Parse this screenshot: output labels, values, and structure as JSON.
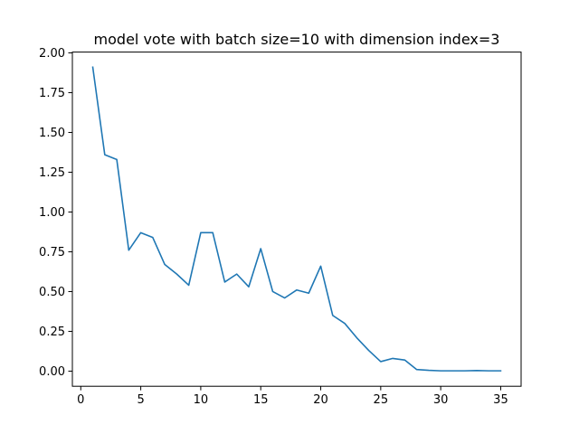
{
  "chart_data": {
    "type": "line",
    "title": "model vote with batch size=10 with dimension index=3",
    "xlabel": "",
    "ylabel": "",
    "xlim": [
      -0.7,
      36.7
    ],
    "ylim": [
      -0.095,
      2.005
    ],
    "x_ticks": [
      0,
      5,
      10,
      15,
      20,
      25,
      30,
      35
    ],
    "x_tick_labels": [
      "0",
      "5",
      "10",
      "15",
      "20",
      "25",
      "30",
      "35"
    ],
    "y_ticks": [
      0.0,
      0.25,
      0.5,
      0.75,
      1.0,
      1.25,
      1.5,
      1.75,
      2.0
    ],
    "y_tick_labels": [
      "0.00",
      "0.25",
      "0.50",
      "0.75",
      "1.00",
      "1.25",
      "1.50",
      "1.75",
      "2.00"
    ],
    "grid": false,
    "line_color": "#1f77b4",
    "series": [
      {
        "x": [
          1,
          2,
          3,
          4,
          5,
          6,
          7,
          8,
          9,
          10,
          11,
          12,
          13,
          14,
          15,
          16,
          17,
          18,
          19,
          20,
          21,
          22,
          23,
          24,
          25,
          26,
          27,
          28,
          29,
          30,
          31,
          32,
          33,
          34,
          35
        ],
        "values": [
          1.91,
          1.36,
          1.33,
          0.76,
          0.87,
          0.84,
          0.67,
          0.61,
          0.54,
          0.87,
          0.87,
          0.56,
          0.61,
          0.53,
          0.77,
          0.5,
          0.46,
          0.51,
          0.49,
          0.66,
          0.35,
          0.3,
          0.21,
          0.13,
          0.06,
          0.08,
          0.07,
          0.01,
          0.005,
          0.002,
          0.002,
          0.002,
          0.004,
          0.002,
          0.002
        ]
      }
    ]
  }
}
